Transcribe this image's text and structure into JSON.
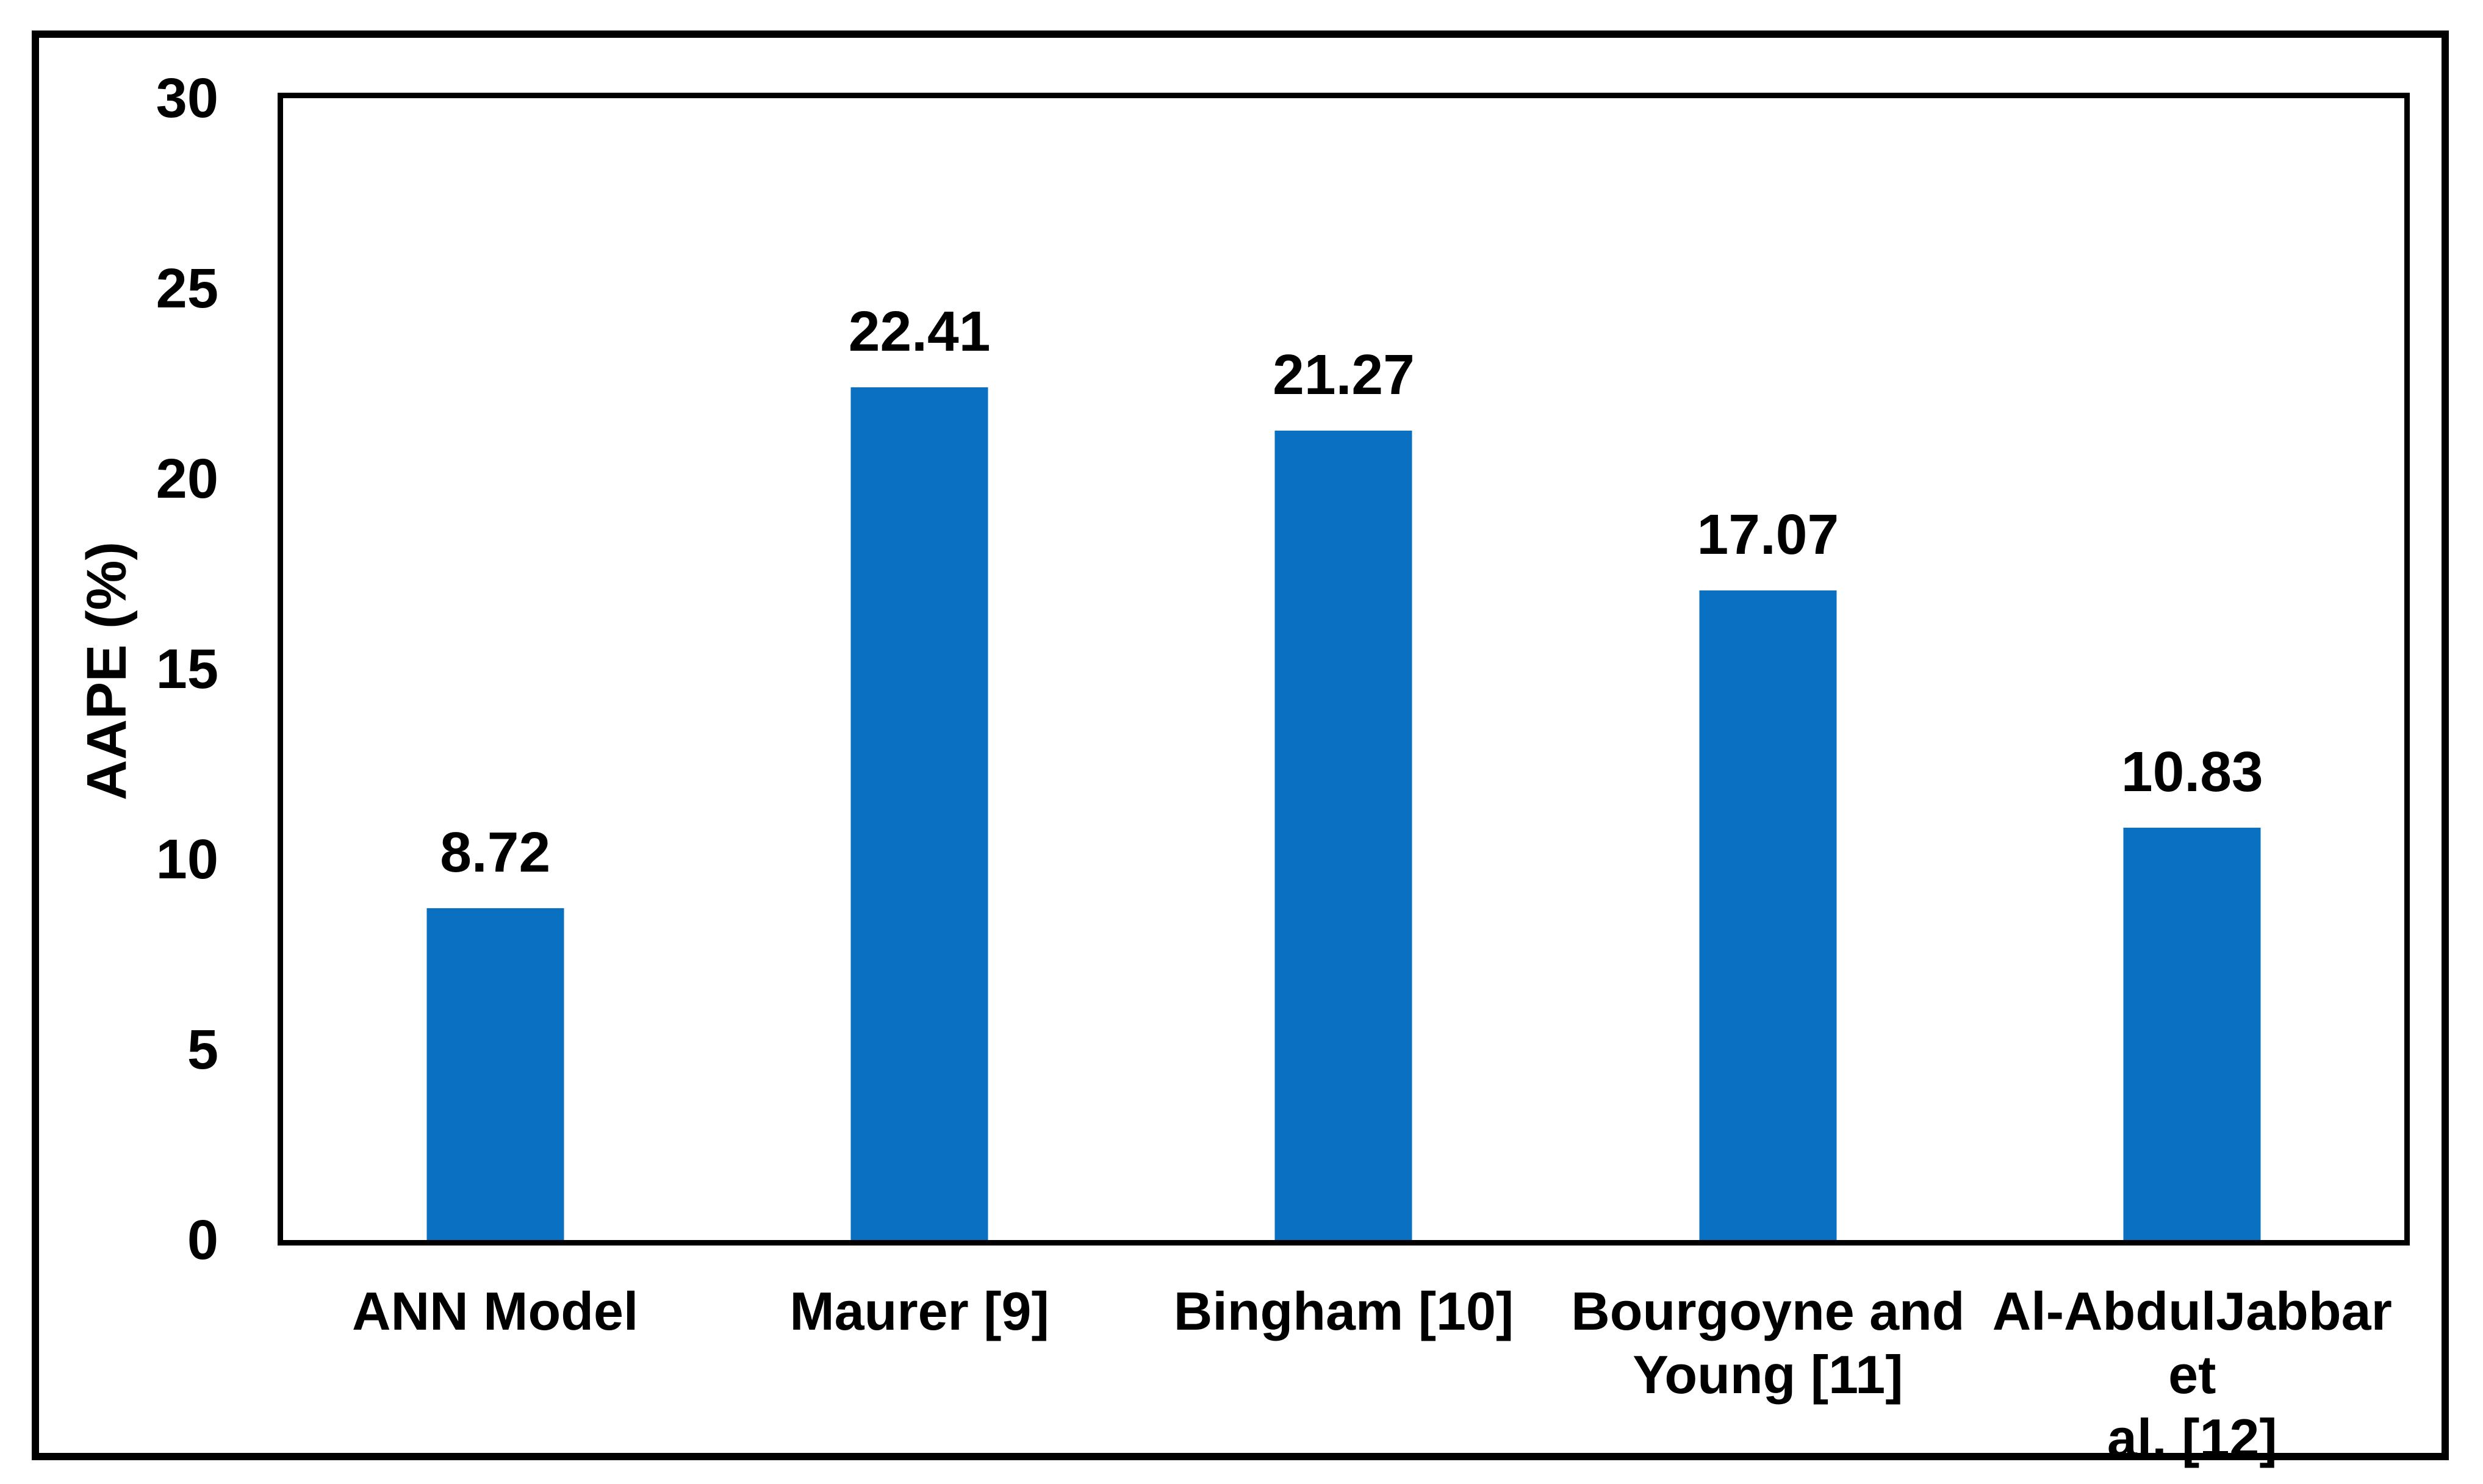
{
  "chart_data": {
    "type": "bar",
    "title": "",
    "xlabel": "",
    "ylabel": "AAPE (%)",
    "categories": [
      "ANN Model",
      "Maurer [9]",
      "Bingham [10]",
      "Bourgoyne and Young [11]",
      "Al-AbdulJabbar et al. [12]"
    ],
    "categories_display": [
      "ANN Model",
      "Maurer [9]",
      "Bingham [10]",
      "Bourgoyne and\nYoung [11]",
      "Al-AbdulJabbar et\nal. [12]"
    ],
    "values": [
      8.72,
      22.41,
      21.27,
      17.07,
      10.83
    ],
    "data_labels": [
      "8.72",
      "22.41",
      "21.27",
      "17.07",
      "10.83"
    ],
    "ylim": [
      0,
      30
    ],
    "yticks": [
      0,
      5,
      10,
      15,
      20,
      25,
      30
    ],
    "bar_color": "#0a70c1",
    "text_color": "#000000",
    "border_color": "#000000",
    "grid": false,
    "legend_position": "none"
  }
}
